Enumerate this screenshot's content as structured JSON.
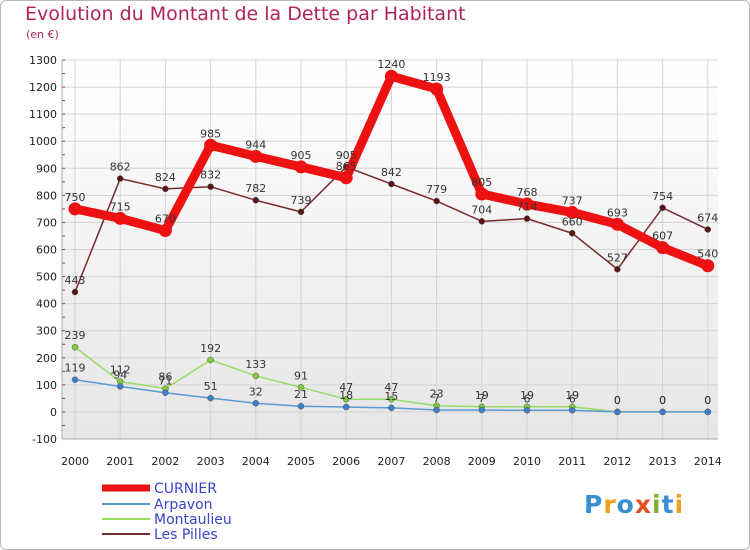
{
  "title": "Evolution du Montant de la Dette par Habitant",
  "subtitle": "(en €)",
  "logo": {
    "text": "Proxiti",
    "colors": [
      "#3a8fd0",
      "#f0a020",
      "#3a8fd0",
      "#e05020",
      "#80b030",
      "#3a8fd0",
      "#f0a020"
    ]
  },
  "chart_data": {
    "type": "line",
    "categories": [
      "2000",
      "2001",
      "2002",
      "2003",
      "2004",
      "2005",
      "2006",
      "2007",
      "2008",
      "2009",
      "2010",
      "2011",
      "2012",
      "2013",
      "2014"
    ],
    "ylim": [
      -100,
      1300
    ],
    "yticks": [
      -100,
      0,
      100,
      200,
      300,
      400,
      500,
      600,
      700,
      800,
      900,
      1000,
      1100,
      1200,
      1300
    ],
    "grid": true,
    "series": [
      {
        "name": "CURNIER",
        "color": "#ee1111",
        "values": [
          750,
          715,
          670,
          985,
          944,
          905,
          865,
          1240,
          1193,
          805,
          768,
          737,
          693,
          607,
          540
        ],
        "labels": [
          "750",
          "715",
          "670",
          "985",
          "944",
          "905",
          "865",
          "1240",
          "1193",
          "805",
          "768",
          "737",
          "693",
          "607",
          "540"
        ]
      },
      {
        "name": "Arpavon",
        "color": "#5b9bd5",
        "values": [
          119,
          94,
          71,
          51,
          32,
          21,
          18,
          15,
          7,
          7,
          6,
          6,
          0,
          0,
          0
        ],
        "labels": [
          "119",
          "94",
          "71",
          "51",
          "32",
          "21",
          "18",
          "15",
          "7",
          "7",
          "6",
          "6",
          "0",
          "0",
          "0"
        ]
      },
      {
        "name": "Montaulieu",
        "color": "#99dd66",
        "values": [
          239,
          112,
          86,
          192,
          133,
          91,
          47,
          47,
          23,
          19,
          19,
          19,
          0,
          0,
          0
        ],
        "labels": [
          "239",
          "112",
          "86",
          "192",
          "133",
          "91",
          "47",
          "47",
          "23",
          "19",
          "19",
          "19",
          "0",
          "0",
          "0"
        ]
      },
      {
        "name": "Les Pilles",
        "color": "#7a2a2a",
        "values": [
          443,
          862,
          824,
          832,
          782,
          739,
          905,
          842,
          779,
          704,
          714,
          660,
          527,
          754,
          674
        ],
        "labels": [
          "443",
          "862",
          "824",
          "832",
          "782",
          "739",
          "905",
          "842",
          "779",
          "704",
          "714",
          "660",
          "527",
          "754",
          "674"
        ]
      }
    ]
  }
}
